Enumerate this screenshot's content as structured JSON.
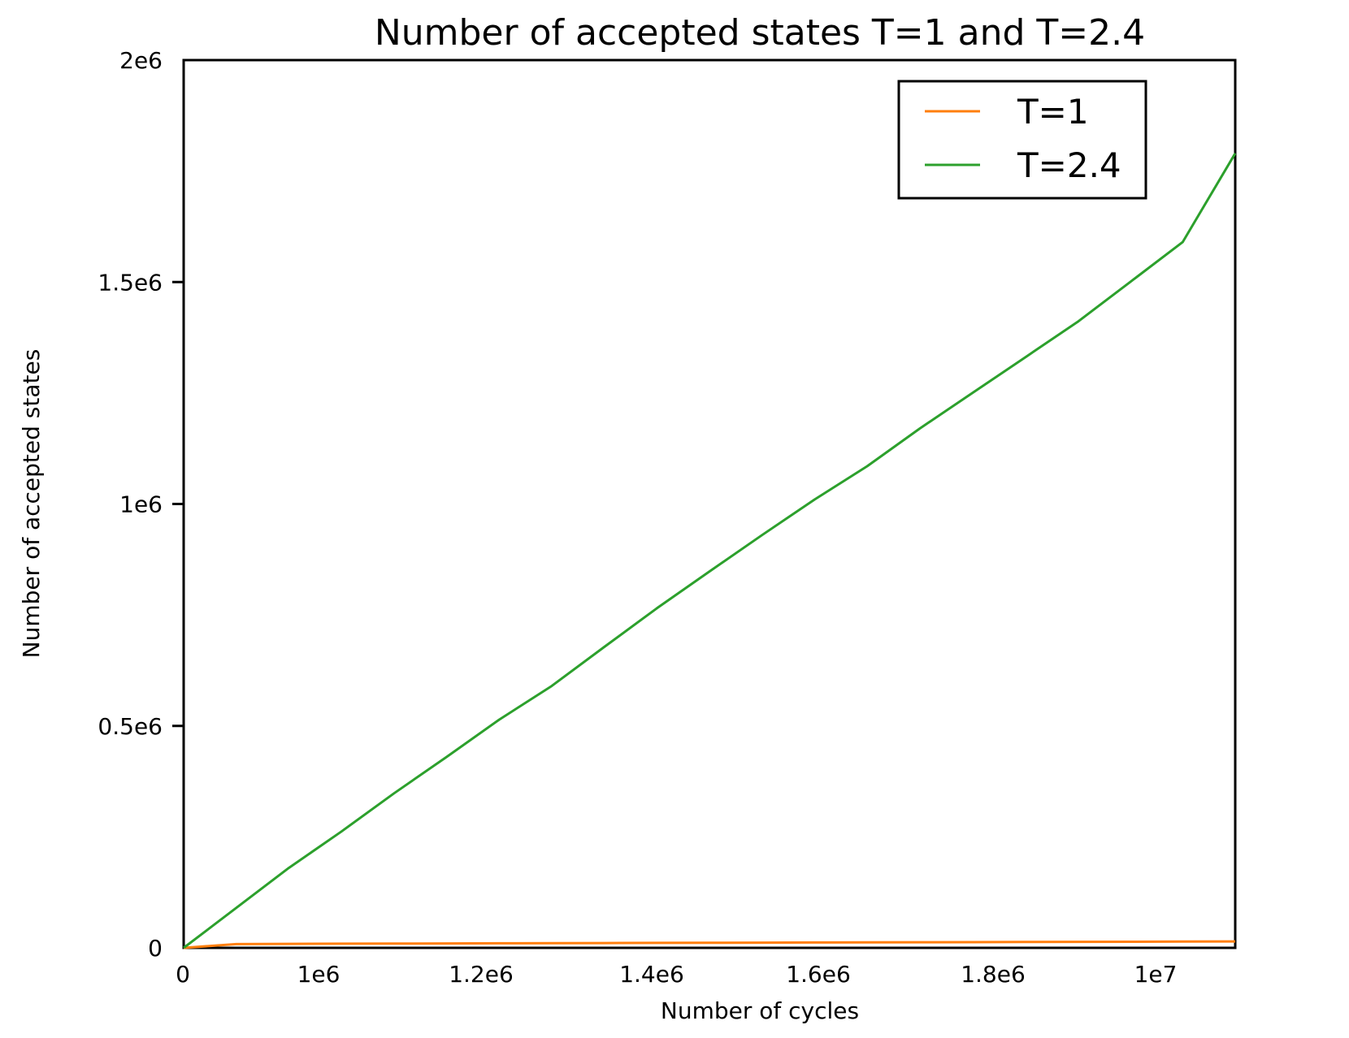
{
  "chart_data": {
    "type": "line",
    "title": "Number of accepted states T=1 and T=2.4",
    "xlabel": "Number of cycles",
    "ylabel": "Number of accepted states",
    "x_ticks": [
      "0",
      "1e6",
      "1.2e6",
      "1.4e6",
      "1.6e6",
      "1.8e6",
      "1e7"
    ],
    "y_ticks": [
      "0",
      "0.5e6",
      "1e6",
      "1.5e6",
      "2e6"
    ],
    "xlim": [
      0,
      10000000
    ],
    "ylim": [
      0,
      2000000
    ],
    "grid": false,
    "legend_position": "top-right",
    "x": [
      0,
      500000,
      1000000,
      1500000,
      2000000,
      2500000,
      3000000,
      3500000,
      4000000,
      4500000,
      5000000,
      5500000,
      6000000,
      6500000,
      7000000,
      7500000,
      8000000,
      8500000,
      9000000,
      9500000,
      10000000
    ],
    "series": [
      {
        "name": "T=1",
        "color": "#ff7f0e",
        "values": [
          0,
          8500,
          9000,
          9300,
          9600,
          9900,
          10200,
          10500,
          10800,
          11100,
          11400,
          11700,
          12000,
          12300,
          12600,
          12900,
          13200,
          13500,
          13800,
          14100,
          14500
        ]
      },
      {
        "name": "T=2.4",
        "color": "#2ca02c",
        "values": [
          0,
          90000,
          180000,
          262000,
          348000,
          430000,
          514000,
          590000,
          678000,
          765000,
          848000,
          930000,
          1010000,
          1085000,
          1170000,
          1250000,
          1330000,
          1410000,
          1500000,
          1590000,
          1790000
        ]
      }
    ]
  }
}
